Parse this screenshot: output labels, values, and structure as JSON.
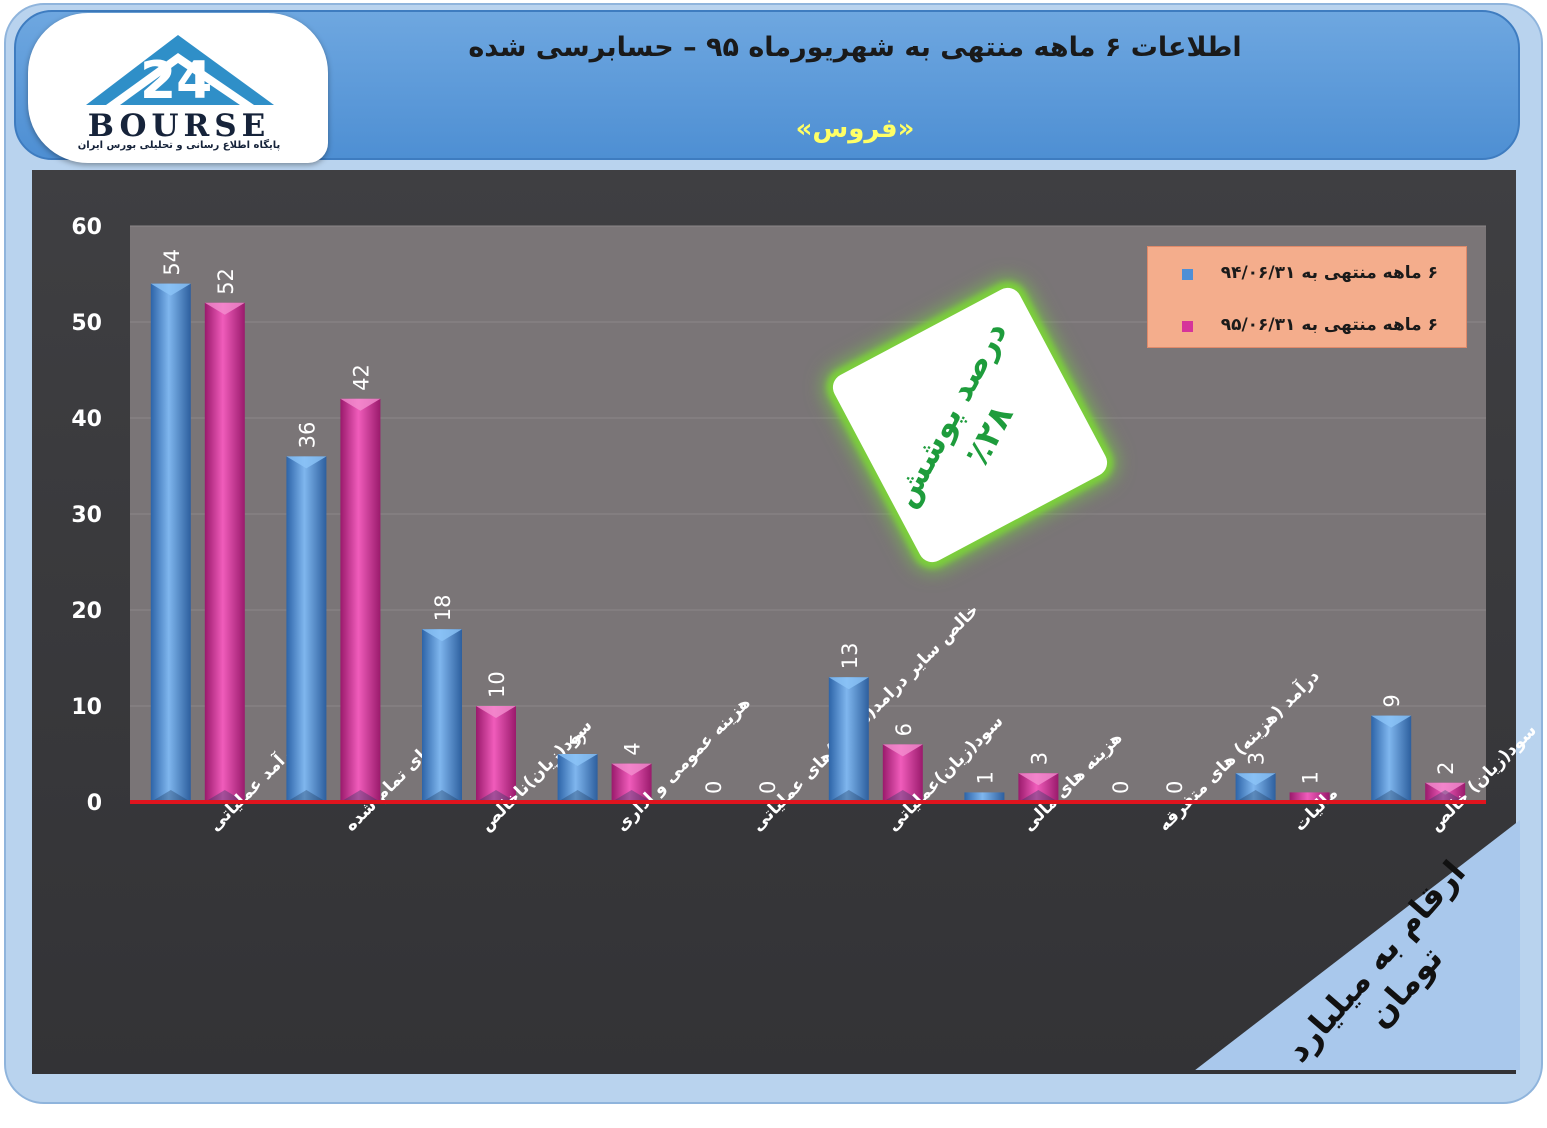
{
  "header": {
    "title": "اطلاعات ۶  ماهه منتهی به شهریورماه ۹۵ – حسابرسی شده",
    "subtitle": "«فروس»",
    "logo_text": "BOURSE",
    "logo_number": "24",
    "logo_subtitle": "پایگاه اطلاع رسانی و تحلیلی بورس ایران"
  },
  "badge": {
    "line1": "درصد پوشش",
    "line2": "٪۲۸"
  },
  "units_label": "ارقام به میلیارد تومان",
  "colors": {
    "series1": "#4f8fd6",
    "series2": "#d6349a",
    "baseline": "#e0141e",
    "badge_glow": "#7ccf3c",
    "subtitle": "#ffff66"
  },
  "chart_data": {
    "type": "bar",
    "categories": [
      "درآمد عملیاتی",
      "بهای تمام شده",
      "سود(زیان)ناخالص",
      "هزینه عمومی و اداری",
      "خالص سایر درامد(هزینه)های عملیاتی",
      "سود(زیان)عملیاتی",
      "هزینه های مالی",
      "درآمد (هزینه) های متفرقه",
      "مالیات",
      "سود(زیان) خالص"
    ],
    "series": [
      {
        "name": "۶ ماهه منتهی به ۹۴/۰۶/۳۱",
        "values": [
          54,
          36,
          18,
          5,
          0,
          13,
          1,
          0,
          3,
          9
        ]
      },
      {
        "name": "۶ ماهه منتهی به ۹۵/۰۶/۳۱",
        "values": [
          52,
          42,
          10,
          4,
          0,
          6,
          3,
          0,
          1,
          2
        ]
      }
    ],
    "y_ticks": [
      "0",
      "10",
      "20",
      "30",
      "40",
      "50",
      "60"
    ],
    "ylim": [
      0,
      60
    ],
    "grid": true,
    "legend_position": "top-right"
  }
}
